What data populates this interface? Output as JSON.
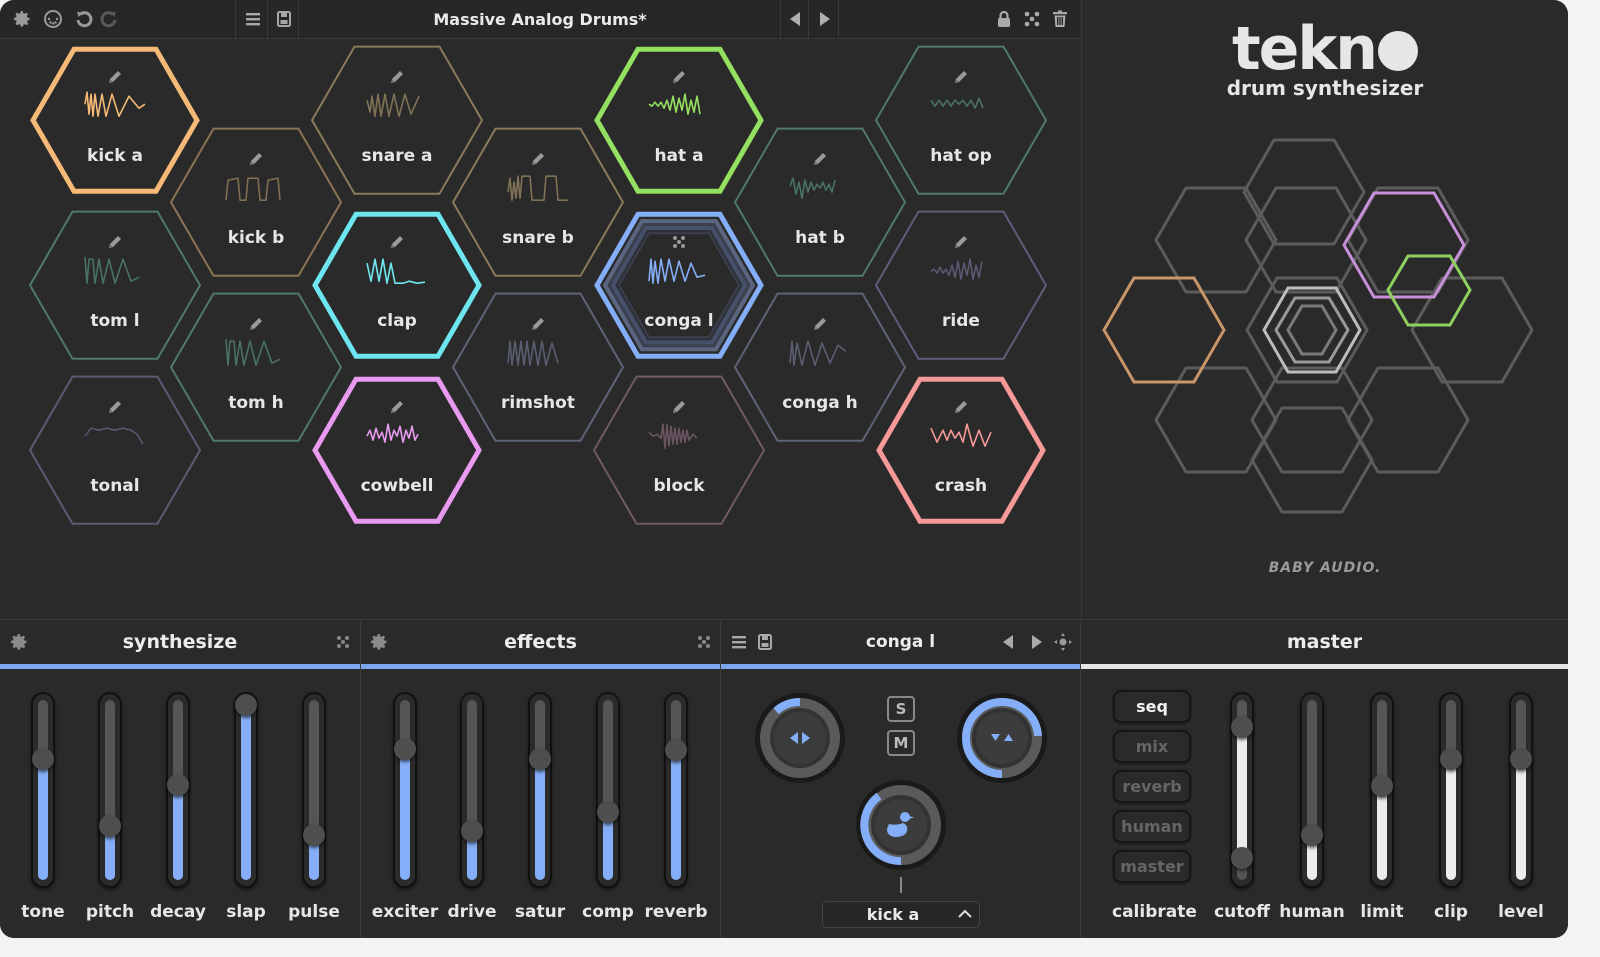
{
  "topbar": {
    "left_icons": [
      "gear-icon",
      "midi-icon",
      "undo-icon",
      "redo-icon"
    ],
    "menu_icon": "hamburger-menu-icon",
    "save_icon": "save-icon",
    "preset_name": "Massive Analog Drums*",
    "prev_icon": "previous-preset-icon",
    "next_icon": "next-preset-icon",
    "right_icons": [
      "lock-icon",
      "randomize-icon",
      "trash-icon"
    ]
  },
  "pads": [
    {
      "label": "kick a",
      "color": "#f5b978",
      "selected": true,
      "wave": "kick"
    },
    {
      "label": "kick b",
      "color": "#8a7355",
      "selected": false,
      "wave": "square"
    },
    {
      "label": "snare a",
      "color": "#8a7a5a",
      "selected": false,
      "wave": "snare"
    },
    {
      "label": "snare b",
      "color": "#8a7a5a",
      "selected": false,
      "wave": "snareb"
    },
    {
      "label": "hat a",
      "color": "#94e060",
      "selected": true,
      "wave": "noise"
    },
    {
      "label": "hat b",
      "color": "#4e7a66",
      "selected": false,
      "wave": "noise2"
    },
    {
      "label": "hat op",
      "color": "#4e7a66",
      "selected": false,
      "wave": "noise3"
    },
    {
      "label": "tom l",
      "color": "#4e7a66",
      "selected": false,
      "wave": "tom"
    },
    {
      "label": "clap",
      "color": "#6ee6f0",
      "selected": true,
      "wave": "clap"
    },
    {
      "label": "conga l",
      "color": "#84aef7",
      "selected": true,
      "active": true,
      "wave": "conga"
    },
    {
      "label": "ride",
      "color": "#5e5e7a",
      "selected": false,
      "wave": "ride"
    },
    {
      "label": "tom h",
      "color": "#4e7a66",
      "selected": false,
      "wave": "tom"
    },
    {
      "label": "rimshot",
      "color": "#5e6478",
      "selected": false,
      "wave": "rim"
    },
    {
      "label": "conga h",
      "color": "#5e6478",
      "selected": false,
      "wave": "congah"
    },
    {
      "label": "tonal",
      "color": "#5e5a74",
      "selected": false,
      "wave": "tonal"
    },
    {
      "label": "cowbell",
      "color": "#e89af0",
      "selected": true,
      "wave": "cowbell"
    },
    {
      "label": "block",
      "color": "#705a66",
      "selected": false,
      "wave": "block"
    },
    {
      "label": "crash",
      "color": "#f59a98",
      "selected": true,
      "wave": "crash"
    }
  ],
  "logo": {
    "title": "tekn",
    "subtitle": "drum synthesizer",
    "brand": "BABY AUDIO."
  },
  "synthesize": {
    "title": "synthesize",
    "sliders": [
      {
        "label": "tone",
        "value": 67
      },
      {
        "label": "pitch",
        "value": 30
      },
      {
        "label": "decay",
        "value": 53
      },
      {
        "label": "slap",
        "value": 97
      },
      {
        "label": "pulse",
        "value": 25
      }
    ]
  },
  "effects": {
    "title": "effects",
    "sliders": [
      {
        "label": "exciter",
        "value": 73
      },
      {
        "label": "drive",
        "value": 27
      },
      {
        "label": "satur",
        "value": 67
      },
      {
        "label": "comp",
        "value": 38
      },
      {
        "label": "reverb",
        "value": 72
      }
    ]
  },
  "channel": {
    "title": "conga l",
    "solo_label": "S",
    "mute_label": "M",
    "pan_knob": {
      "name": "pan",
      "value": 10
    },
    "pitch_knob": {
      "name": "tune",
      "value": 75
    },
    "duck_knob": {
      "name": "duck",
      "value": 42
    },
    "duck_source": "kick a"
  },
  "master": {
    "title": "master",
    "calibrate_label": "calibrate",
    "calibrate_buttons": [
      {
        "label": "seq",
        "active": true
      },
      {
        "label": "mix",
        "active": false
      },
      {
        "label": "reverb",
        "active": false
      },
      {
        "label": "human",
        "active": false
      },
      {
        "label": "master",
        "active": false
      }
    ],
    "sliders": [
      {
        "label": "cutoff",
        "value": 85,
        "low": 12
      },
      {
        "label": "human",
        "value": 25
      },
      {
        "label": "limit",
        "value": 52
      },
      {
        "label": "clip",
        "value": 67
      },
      {
        "label": "level",
        "value": 67
      }
    ]
  },
  "colors": {
    "accent": "#84aef7",
    "background": "#2a2a2a",
    "hex_grid": "#5c5c5c"
  }
}
